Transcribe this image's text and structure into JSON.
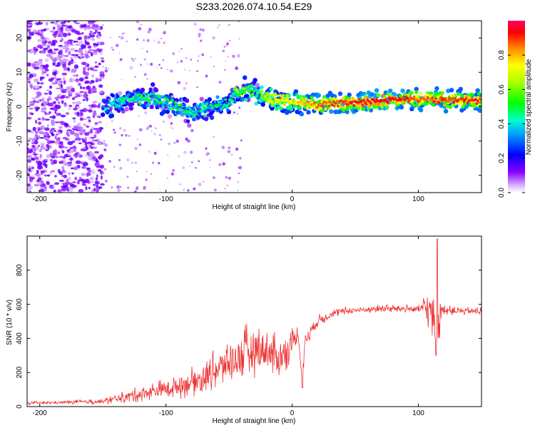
{
  "title": "S233.2026.074.10.54.E29",
  "chart_data": [
    {
      "type": "heatmap",
      "xlabel": "Height of straight line (km)",
      "ylabel": "Frequency (Hz)",
      "xlim": [
        -210,
        150
      ],
      "ylim": [
        -25,
        25
      ],
      "xticks": [
        -200,
        -100,
        0,
        100
      ],
      "yticks": [
        -20,
        -10,
        0,
        10,
        20
      ],
      "colorbar": {
        "label": "Normalized spectral amplitude",
        "range": [
          0,
          1
        ],
        "ticks": [
          0.0,
          0.2,
          0.4,
          0.6,
          0.8
        ]
      },
      "ridge": {
        "x": [
          -150,
          -140,
          -130,
          -120,
          -110,
          -100,
          -90,
          -80,
          -70,
          -60,
          -50,
          -45,
          -40,
          -35,
          -30,
          -25,
          -20,
          -10,
          0,
          10,
          20,
          40,
          60,
          80,
          100,
          120,
          140,
          150
        ],
        "freq": [
          0,
          1,
          2,
          2.5,
          3,
          1.5,
          -0.5,
          -1.5,
          -0.5,
          0,
          1,
          3.5,
          4.5,
          5,
          4.5,
          3,
          2.5,
          2,
          1.5,
          1,
          0.5,
          1,
          1.5,
          2,
          2.2,
          2,
          1.8,
          1.8
        ],
        "amplitude": [
          0.3,
          0.4,
          0.45,
          0.5,
          0.45,
          0.45,
          0.45,
          0.45,
          0.45,
          0.4,
          0.45,
          0.55,
          0.6,
          0.55,
          0.45,
          0.55,
          0.7,
          0.75,
          0.75,
          0.8,
          0.85,
          0.9,
          0.95,
          0.95,
          0.85,
          0.9,
          0.9,
          0.9
        ]
      }
    },
    {
      "type": "line",
      "xlabel": "Height of straight line (km)",
      "ylabel": "SNR (10 * v/v)",
      "xlim": [
        -210,
        150
      ],
      "ylim": [
        0,
        1000
      ],
      "xticks": [
        -200,
        -100,
        0,
        100
      ],
      "yticks": [
        0,
        200,
        400,
        600,
        800
      ],
      "series": [
        {
          "name": "SNR",
          "color": "#ee3333",
          "x": [
            -210,
            -180,
            -150,
            -130,
            -110,
            -90,
            -70,
            -60,
            -50,
            -40,
            -30,
            -20,
            -15,
            -10,
            -5,
            0,
            5,
            8,
            10,
            15,
            20,
            30,
            40,
            50,
            60,
            70,
            80,
            90,
            100,
            105,
            110,
            113,
            115,
            118,
            120,
            130,
            140,
            150
          ],
          "y": [
            20,
            25,
            30,
            60,
            90,
            120,
            170,
            220,
            260,
            300,
            340,
            330,
            300,
            280,
            320,
            380,
            420,
            150,
            380,
            450,
            500,
            540,
            560,
            565,
            570,
            575,
            575,
            575,
            570,
            580,
            560,
            500,
            420,
            560,
            570,
            560,
            560,
            560
          ],
          "noise_amp": [
            8,
            8,
            15,
            30,
            45,
            60,
            80,
            100,
            120,
            130,
            140,
            130,
            120,
            110,
            90,
            70,
            50,
            40,
            50,
            40,
            30,
            25,
            20,
            20,
            20,
            20,
            20,
            20,
            22,
            60,
            110,
            200,
            160,
            40,
            25,
            20,
            20,
            20
          ],
          "annotations": [
            {
              "x": 8,
              "y": 110
            },
            {
              "x": 114,
              "y": 300
            },
            {
              "x": 115,
              "y": 985
            }
          ]
        }
      ]
    }
  ]
}
